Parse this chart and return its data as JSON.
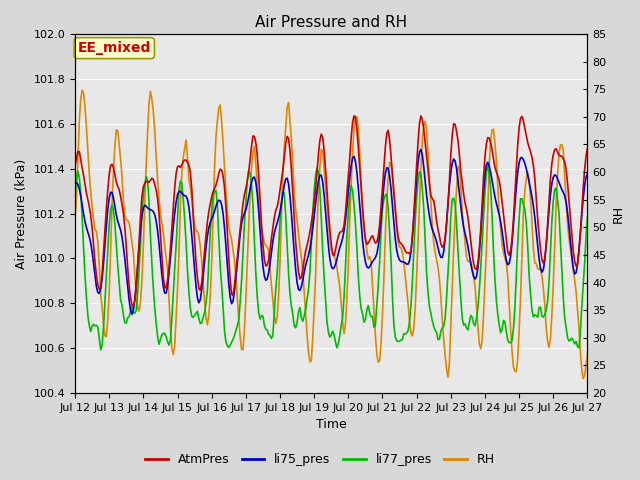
{
  "title": "Air Pressure and RH",
  "xlabel": "Time",
  "ylabel_left": "Air Pressure (kPa)",
  "ylabel_right": "RH",
  "annotation": "EE_mixed",
  "ylim_left": [
    100.4,
    102.0
  ],
  "ylim_right": [
    20,
    85
  ],
  "yticks_left": [
    100.4,
    100.6,
    100.8,
    101.0,
    101.2,
    101.4,
    101.6,
    101.8,
    102.0
  ],
  "yticks_right": [
    20,
    25,
    30,
    35,
    40,
    45,
    50,
    55,
    60,
    65,
    70,
    75,
    80,
    85
  ],
  "xtick_labels": [
    "Jul 12",
    "Jul 13",
    "Jul 14",
    "Jul 15",
    "Jul 16",
    "Jul 17",
    "Jul 18",
    "Jul 19",
    "Jul 20",
    "Jul 21",
    "Jul 22",
    "Jul 23",
    "Jul 24",
    "Jul 25",
    "Jul 26",
    "Jul 27"
  ],
  "legend_labels": [
    "AtmPres",
    "li75_pres",
    "li77_pres",
    "RH"
  ],
  "colors": {
    "AtmPres": "#cc0000",
    "li75_pres": "#0000cc",
    "li77_pres": "#00bb00",
    "RH": "#dd8800"
  },
  "line_width": 1.2,
  "fig_bg_color": "#d8d8d8",
  "plot_bg": "#e8e8e8",
  "annotation_bg": "#ffffcc",
  "annotation_border": "#999900",
  "annotation_text_color": "#cc0000",
  "grid_color": "#ffffff",
  "title_fontsize": 11,
  "label_fontsize": 9,
  "tick_fontsize": 8,
  "legend_fontsize": 9
}
